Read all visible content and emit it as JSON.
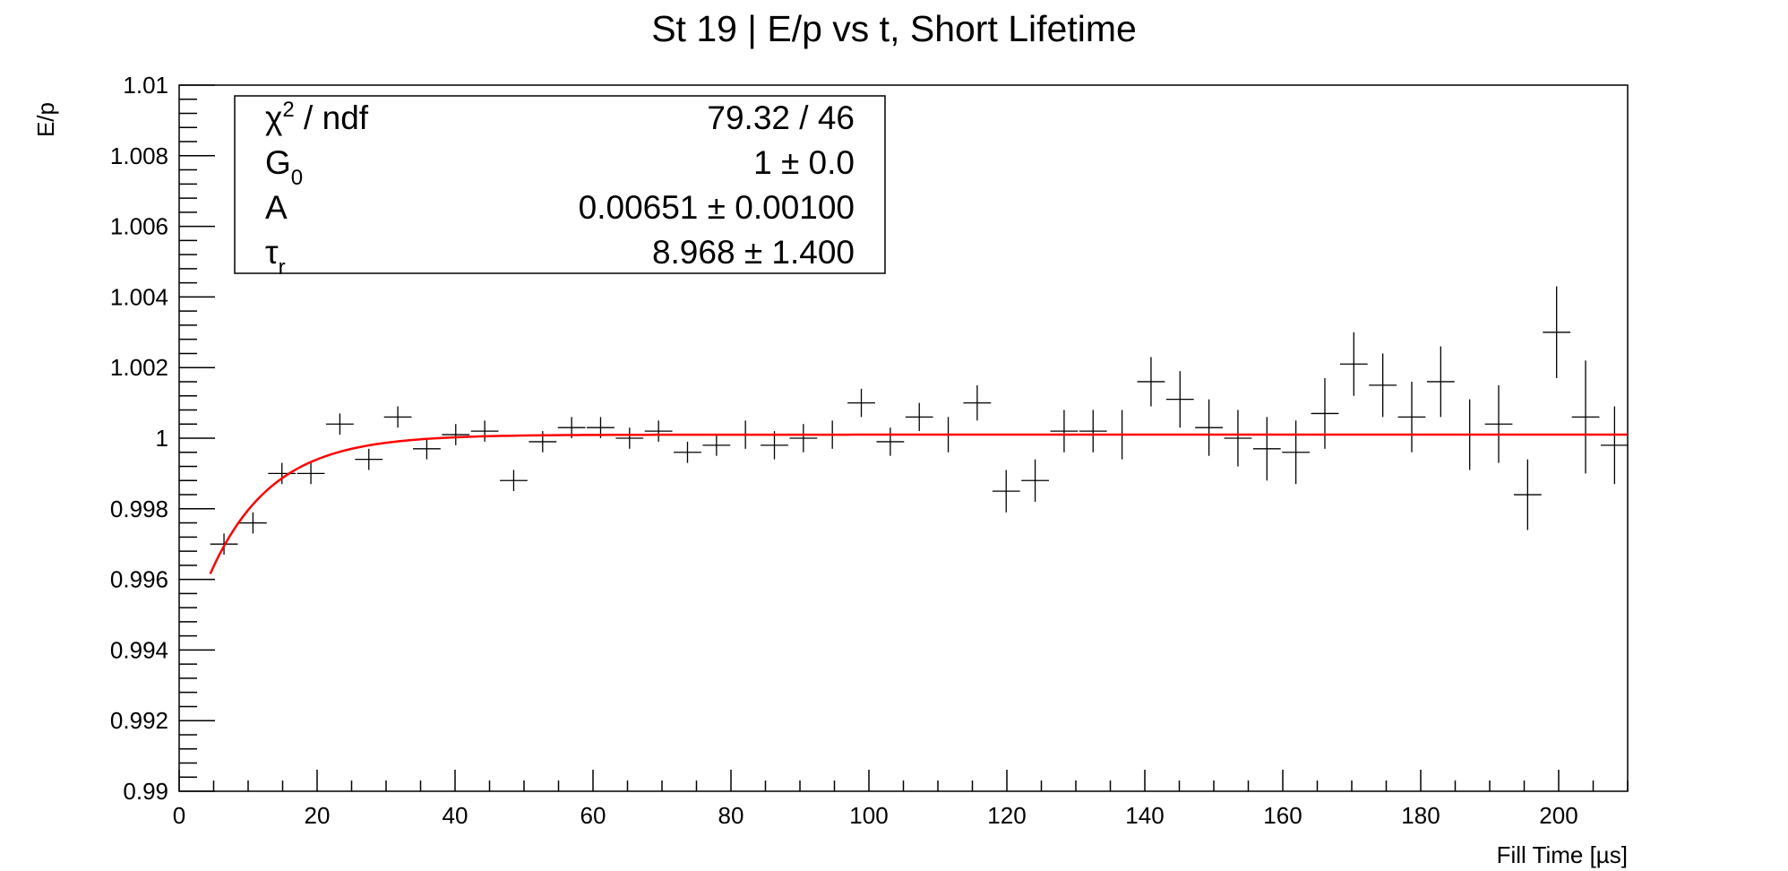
{
  "chart_data": {
    "type": "scatter",
    "title": "St 19 | E/p vs t, Short Lifetime",
    "xlabel": "Fill Time [µs]",
    "ylabel": "E/p",
    "xlim": [
      0,
      210
    ],
    "ylim": [
      0.99,
      1.01
    ],
    "x_tick_labels": [
      "0",
      "20",
      "40",
      "60",
      "80",
      "100",
      "120",
      "140",
      "160",
      "180",
      "200"
    ],
    "y_tick_labels": [
      "0.99",
      "0.992",
      "0.994",
      "0.996",
      "0.998",
      "1",
      "1.002",
      "1.004",
      "1.006",
      "1.008",
      "1.01"
    ],
    "grid": false,
    "bin_half_width": 2.0,
    "series": [
      {
        "x": [
          6.5,
          10.7,
          14.9,
          19.1,
          23.3,
          27.5,
          31.7,
          35.9,
          40.1,
          44.3,
          48.5,
          52.7,
          56.9,
          61.1,
          65.3,
          69.5,
          73.7,
          77.9,
          82.1,
          86.3,
          90.5,
          94.7,
          98.9,
          103.1,
          107.3,
          111.5,
          115.7,
          119.9,
          124.1,
          128.3,
          132.5,
          136.7,
          140.9,
          145.1,
          149.3,
          153.5,
          157.7,
          161.9,
          166.1,
          170.3,
          174.5,
          178.7,
          182.9,
          187.1,
          191.3,
          195.5,
          199.7,
          203.9,
          208.1
        ],
        "y": [
          0.997,
          0.9976,
          0.999,
          0.999,
          1.0004,
          0.9994,
          1.0006,
          0.9997,
          1.0001,
          1.0002,
          0.9988,
          0.9999,
          1.0003,
          1.0003,
          1.0,
          1.0002,
          0.9996,
          0.9998,
          1.0001,
          0.9998,
          1.0,
          1.0001,
          1.001,
          0.9999,
          1.0006,
          1.0001,
          1.001,
          0.9985,
          0.9988,
          1.0002,
          1.0002,
          1.0001,
          1.0016,
          1.0011,
          1.0003,
          1.0,
          0.9997,
          0.9996,
          1.0007,
          1.0021,
          1.0015,
          1.0006,
          1.0016,
          1.0001,
          1.0004,
          0.9984,
          1.003,
          1.0006,
          0.9998
        ],
        "err": [
          0.0003,
          0.0003,
          0.0003,
          0.0003,
          0.0003,
          0.0003,
          0.0003,
          0.0003,
          0.0003,
          0.0003,
          0.0003,
          0.0003,
          0.0003,
          0.0003,
          0.0003,
          0.0003,
          0.0003,
          0.0003,
          0.0004,
          0.0004,
          0.0004,
          0.0004,
          0.0004,
          0.0004,
          0.0004,
          0.0005,
          0.0005,
          0.0006,
          0.0006,
          0.0006,
          0.0006,
          0.0007,
          0.0007,
          0.0008,
          0.0008,
          0.0008,
          0.0009,
          0.0009,
          0.001,
          0.0009,
          0.0009,
          0.001,
          0.001,
          0.001,
          0.0011,
          0.001,
          0.0013,
          0.0016,
          0.0011
        ]
      }
    ],
    "fit": {
      "type": "line",
      "color": "#ff0000",
      "G0": 1.0001,
      "A": 0.00651,
      "tau": 8.968,
      "x_start": 4.5,
      "x_end": 210
    },
    "stats_box": {
      "rows": [
        {
          "name": "χ",
          "sup": "2",
          "rest": " / ndf",
          "value": "79.32 / 46"
        },
        {
          "name": "G",
          "sub": "0",
          "value": "1 ± 0.0"
        },
        {
          "name": "A",
          "value": "0.00651 ± 0.00100"
        },
        {
          "name": "τ",
          "sub": "r",
          "value": "8.968 ± 1.400"
        }
      ]
    }
  }
}
